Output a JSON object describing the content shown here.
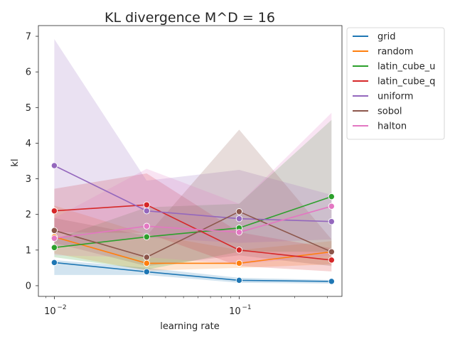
{
  "chart_data": {
    "type": "line",
    "title": "KL divergence M^D = 16",
    "xlabel": "learning rate",
    "ylabel": "kl",
    "xscale": "log",
    "xlim": [
      0.0082,
      0.36
    ],
    "ylim": [
      -0.3,
      7.3
    ],
    "x": [
      0.01,
      0.0316,
      0.1,
      0.316
    ],
    "x_ticks": [
      {
        "value": 0.01,
        "base": "10",
        "exp": "−2"
      },
      {
        "value": 0.1,
        "base": "10",
        "exp": "−1"
      }
    ],
    "y_ticks": [
      {
        "value": 0,
        "label": "0"
      },
      {
        "value": 1,
        "label": "1"
      },
      {
        "value": 2,
        "label": "2"
      },
      {
        "value": 3,
        "label": "3"
      },
      {
        "value": 4,
        "label": "4"
      },
      {
        "value": 5,
        "label": "5"
      },
      {
        "value": 6,
        "label": "6"
      },
      {
        "value": 7,
        "label": "7"
      }
    ],
    "grid": false,
    "legend_position": "outside-right-top",
    "series": [
      {
        "name": "grid",
        "color": "#1f77b4",
        "values": [
          0.65,
          0.39,
          0.15,
          0.12
        ],
        "ci_low": [
          0.3,
          0.3,
          0.08,
          0.06
        ],
        "ci_high": [
          0.72,
          0.5,
          0.22,
          0.16
        ]
      },
      {
        "name": "random",
        "color": "#ff7f0e",
        "values": [
          1.37,
          0.63,
          0.63,
          0.95
        ],
        "ci_low": [
          0.9,
          0.42,
          0.5,
          0.6
        ],
        "ci_high": [
          2.25,
          1.45,
          1.0,
          1.25
        ]
      },
      {
        "name": "latin_cube_u",
        "color": "#2ca02c",
        "values": [
          1.07,
          1.37,
          1.62,
          2.5
        ],
        "ci_low": [
          0.8,
          0.45,
          0.95,
          0.95
        ],
        "ci_high": [
          1.3,
          2.2,
          2.3,
          4.65
        ]
      },
      {
        "name": "latin_cube_q",
        "color": "#d62728",
        "values": [
          2.1,
          2.27,
          1.0,
          0.72
        ],
        "ci_low": [
          1.5,
          1.48,
          0.55,
          0.4
        ],
        "ci_high": [
          2.72,
          3.15,
          1.5,
          1.05
        ]
      },
      {
        "name": "uniform",
        "color": "#9467bd",
        "values": [
          3.37,
          2.1,
          1.88,
          1.8
        ],
        "ci_low": [
          1.1,
          1.35,
          1.2,
          1.3
        ],
        "ci_high": [
          6.92,
          2.95,
          3.25,
          2.55
        ]
      },
      {
        "name": "sobol",
        "color": "#8c564b",
        "values": [
          1.55,
          0.8,
          2.08,
          0.95
        ],
        "ci_low": [
          1.2,
          0.55,
          0.85,
          0.55
        ],
        "ci_high": [
          1.9,
          1.4,
          4.38,
          1.3
        ]
      },
      {
        "name": "halton",
        "color": "#e377c2",
        "values": [
          1.33,
          1.67,
          1.5,
          2.23
        ],
        "ci_low": [
          0.85,
          0.8,
          0.6,
          0.85
        ],
        "ci_high": [
          1.9,
          3.28,
          2.3,
          4.85
        ]
      }
    ]
  }
}
